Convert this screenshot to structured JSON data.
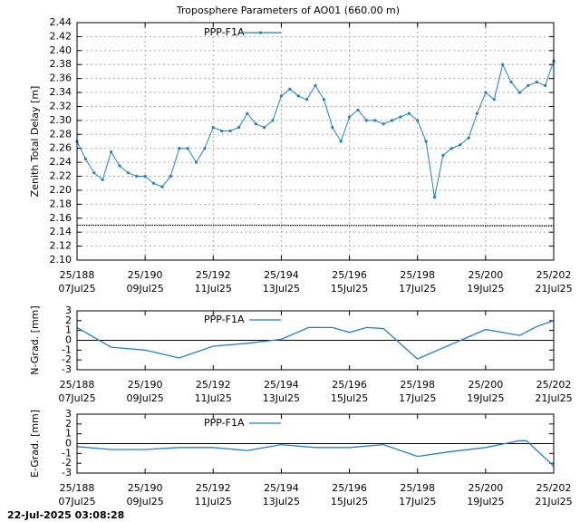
{
  "chart_data": [
    {
      "type": "line",
      "title": "Troposphere Parameters of AO01 (660.00 m)",
      "ylabel": "Zenith Total Delay [m]",
      "xlim": [
        188,
        202
      ],
      "xticks": [
        {
          "value": 188,
          "label": "25/188"
        },
        {
          "value": 190,
          "label": "25/190"
        },
        {
          "value": 192,
          "label": "25/192"
        },
        {
          "value": 194,
          "label": "25/194"
        },
        {
          "value": 196,
          "label": "25/196"
        },
        {
          "value": 198,
          "label": "25/198"
        },
        {
          "value": 200,
          "label": "25/200"
        },
        {
          "value": 202,
          "label": "25/202"
        }
      ],
      "xtick_dates": [
        "07Jul25",
        "09Jul25",
        "11Jul25",
        "13Jul25",
        "15Jul25",
        "17Jul25",
        "19Jul25",
        "21Jul25"
      ],
      "ylim": [
        2.1,
        2.44
      ],
      "yticks": [
        {
          "value": 2.1,
          "label": "2.10"
        },
        2.12,
        2.14,
        2.16,
        2.18,
        {
          "value": 2.2,
          "label": "2.20"
        },
        2.22,
        2.24,
        2.26,
        2.28,
        {
          "value": 2.3,
          "label": "2.30"
        },
        2.32,
        2.34,
        2.36,
        2.38,
        {
          "value": 2.4,
          "label": "2.40"
        },
        2.42,
        2.44
      ],
      "grid": true,
      "zero_line": false,
      "series": [
        {
          "name": "PPP-F1A",
          "color": "#1f7fd8",
          "markers": true,
          "x": [
            188,
            188.25,
            188.5,
            188.75,
            189,
            189.25,
            189.5,
            189.75,
            190,
            190.25,
            190.5,
            190.75,
            191,
            191.25,
            191.5,
            191.75,
            192,
            192.25,
            192.5,
            192.75,
            193,
            193.25,
            193.5,
            193.75,
            194,
            194.25,
            194.5,
            194.75,
            195,
            195.25,
            195.5,
            195.75,
            196,
            196.25,
            196.5,
            196.75,
            197,
            197.25,
            197.5,
            197.75,
            198,
            198.25,
            198.5,
            198.75,
            199,
            199.25,
            199.5,
            199.75,
            200,
            200.25,
            200.5,
            200.75,
            201,
            201.25,
            201.5,
            201.75,
            202
          ],
          "values": [
            2.27,
            2.245,
            2.225,
            2.215,
            2.255,
            2.235,
            2.225,
            2.22,
            2.22,
            2.21,
            2.205,
            2.22,
            2.26,
            2.26,
            2.24,
            2.26,
            2.29,
            2.285,
            2.285,
            2.29,
            2.31,
            2.295,
            2.29,
            2.3,
            2.335,
            2.345,
            2.335,
            2.33,
            2.35,
            2.33,
            2.29,
            2.27,
            2.305,
            2.315,
            2.3,
            2.3,
            2.295,
            2.3,
            2.305,
            2.31,
            2.3,
            2.27,
            2.19,
            2.25,
            2.26,
            2.265,
            2.275,
            2.31,
            2.34,
            2.33,
            2.38,
            2.355,
            2.34,
            2.35,
            2.355,
            2.35,
            2.385
          ]
        },
        {
          "color": "#000000",
          "markers": false,
          "x": [
            188,
            193,
            202
          ],
          "values": [
            2.15,
            2.15,
            2.149
          ]
        }
      ]
    },
    {
      "type": "line",
      "ylabel": "N-Grad. [mm]",
      "xlim": [
        188,
        202
      ],
      "xticks": [
        {
          "value": 188,
          "label": "25/188"
        },
        {
          "value": 190,
          "label": "25/190"
        },
        {
          "value": 192,
          "label": "25/192"
        },
        {
          "value": 194,
          "label": "25/194"
        },
        {
          "value": 196,
          "label": "25/196"
        },
        {
          "value": 198,
          "label": "25/198"
        },
        {
          "value": 200,
          "label": "25/200"
        },
        {
          "value": 202,
          "label": "25/202"
        }
      ],
      "xtick_dates": [
        "07Jul25",
        "09Jul25",
        "11Jul25",
        "13Jul25",
        "15Jul25",
        "17Jul25",
        "19Jul25",
        "21Jul25"
      ],
      "ylim": [
        -3,
        3
      ],
      "yticks": [
        -3,
        -2,
        -1,
        0,
        1,
        2,
        3
      ],
      "grid": false,
      "zero_line": true,
      "series": [
        {
          "name": "PPP-F1A",
          "color": "#1f7fd8",
          "markers": false,
          "x": [
            188,
            189,
            190,
            191,
            192,
            193,
            194,
            194.8,
            195.5,
            196,
            196.5,
            197,
            198,
            199,
            200,
            201,
            201.5,
            202
          ],
          "values": [
            1.3,
            -0.7,
            -1.0,
            -1.8,
            -0.6,
            -0.3,
            0.1,
            1.3,
            1.3,
            0.8,
            1.3,
            1.2,
            -1.9,
            -0.4,
            1.1,
            0.5,
            1.4,
            2.0
          ]
        }
      ]
    },
    {
      "type": "line",
      "ylabel": "E-Grad. [mm]",
      "xlim": [
        188,
        202
      ],
      "xticks": [
        {
          "value": 188,
          "label": "25/188"
        },
        {
          "value": 190,
          "label": "25/190"
        },
        {
          "value": 192,
          "label": "25/192"
        },
        {
          "value": 194,
          "label": "25/194"
        },
        {
          "value": 196,
          "label": "25/196"
        },
        {
          "value": 198,
          "label": "25/198"
        },
        {
          "value": 200,
          "label": "25/200"
        },
        {
          "value": 202,
          "label": "25/202"
        }
      ],
      "xtick_dates": [
        "07Jul25",
        "09Jul25",
        "11Jul25",
        "13Jul25",
        "15Jul25",
        "17Jul25",
        "19Jul25",
        "21Jul25"
      ],
      "ylim": [
        -3,
        3
      ],
      "yticks": [
        -3,
        -2,
        -1,
        0,
        1,
        2,
        3
      ],
      "grid": false,
      "zero_line": true,
      "series": [
        {
          "name": "PPP-F1A",
          "color": "#1f7fd8",
          "markers": false,
          "x": [
            188,
            189,
            190,
            191,
            192,
            193,
            194,
            195,
            196,
            197,
            198,
            199,
            200,
            201,
            201.2,
            202
          ],
          "values": [
            -0.3,
            -0.6,
            -0.6,
            -0.4,
            -0.4,
            -0.7,
            -0.1,
            -0.4,
            -0.4,
            -0.1,
            -1.3,
            -0.8,
            -0.4,
            0.3,
            0.3,
            -2.3
          ]
        }
      ]
    }
  ],
  "timestamp": "22-Jul-2025 03:08:28"
}
